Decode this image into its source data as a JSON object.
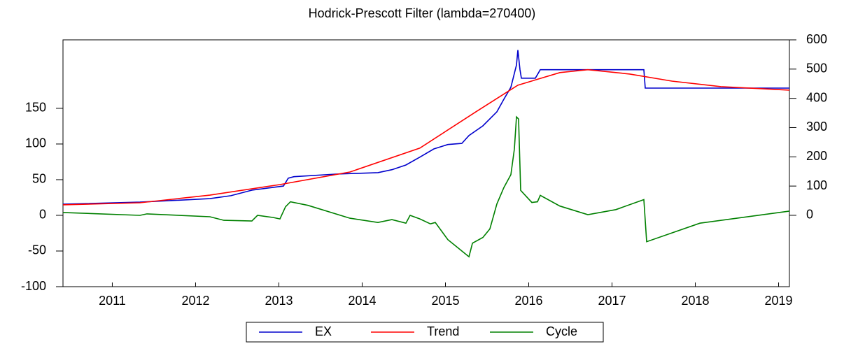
{
  "chart_data": {
    "type": "line",
    "title": "Hodrick-Prescott Filter (lambda=270400)",
    "xlim": [
      2010.908,
      2019.63
    ],
    "xticks": [
      {
        "value": 2011.5,
        "label": "2011"
      },
      {
        "value": 2012.5,
        "label": "2012"
      },
      {
        "value": 2013.5,
        "label": "2013"
      },
      {
        "value": 2014.5,
        "label": "2014"
      },
      {
        "value": 2015.5,
        "label": "2015"
      },
      {
        "value": 2016.5,
        "label": "2016"
      },
      {
        "value": 2017.5,
        "label": "2017"
      },
      {
        "value": 2018.5,
        "label": "2018"
      },
      {
        "value": 2019.5,
        "label": "2019"
      }
    ],
    "ylim": [
      -100,
      246
    ],
    "yticks": [
      -100,
      -50,
      0,
      50,
      100,
      150
    ],
    "y2lim": [
      -244,
      600
    ],
    "y2ticks": [
      0,
      100,
      200,
      300,
      400,
      500,
      600
    ],
    "series": [
      {
        "name": "EX",
        "color": "#0000cc",
        "axis": "y2",
        "x": [
          2010.908,
          2011.832,
          2012.672,
          2012.924,
          2013.176,
          2013.555,
          2013.613,
          2013.681,
          2014.185,
          2014.689,
          2014.857,
          2015.025,
          2015.193,
          2015.361,
          2015.529,
          2015.697,
          2015.782,
          2015.95,
          2016.118,
          2016.202,
          2016.286,
          2016.353,
          2016.37,
          2016.395,
          2016.412,
          2016.58,
          2016.639,
          2017.882,
          2017.899,
          2019.63
        ],
        "values": [
          38,
          45,
          57,
          67,
          86,
          100,
          127,
          132,
          141,
          146,
          156,
          172,
          199,
          227,
          242,
          246,
          273,
          306,
          354,
          397,
          438,
          514,
          565,
          498,
          469,
          469,
          498,
          498,
          435,
          435
        ]
      },
      {
        "name": "Trend",
        "color": "#ff0000",
        "axis": "y2",
        "x": [
          2010.908,
          2011.832,
          2012.672,
          2013.513,
          2014.353,
          2015.193,
          2015.866,
          2016.37,
          2016.874,
          2017.21,
          2017.714,
          2018.218,
          2018.807,
          2019.63
        ],
        "values": [
          36,
          43,
          69,
          105,
          148,
          230,
          354,
          445,
          488,
          498,
          483,
          459,
          440,
          428
        ]
      },
      {
        "name": "Cycle",
        "color": "#008000",
        "x": [
          2010.908,
          2011.832,
          2011.916,
          2012.672,
          2012.84,
          2013.176,
          2013.244,
          2013.429,
          2013.513,
          2013.58,
          2013.639,
          2013.849,
          2014.353,
          2014.689,
          2014.857,
          2015.025,
          2015.076,
          2015.193,
          2015.319,
          2015.378,
          2015.529,
          2015.655,
          2015.782,
          2015.824,
          2015.95,
          2016.034,
          2016.118,
          2016.202,
          2016.286,
          2016.328,
          2016.353,
          2016.378,
          2016.403,
          2016.538,
          2016.605,
          2016.639,
          2016.874,
          2017.21,
          2017.546,
          2017.882,
          2017.916,
          2018.555,
          2019.63
        ],
        "values": [
          4,
          0,
          2,
          -2,
          -7,
          -8,
          0,
          -3,
          -5,
          12,
          19,
          14,
          -4,
          -10,
          -6,
          -11,
          0,
          -5,
          -12,
          -10,
          -34,
          -46,
          -58,
          -39,
          -31,
          -19,
          16,
          39,
          57,
          93,
          138,
          135,
          35,
          18,
          19,
          28,
          13,
          1,
          8,
          22,
          -37,
          -11,
          6
        ]
      }
    ]
  }
}
